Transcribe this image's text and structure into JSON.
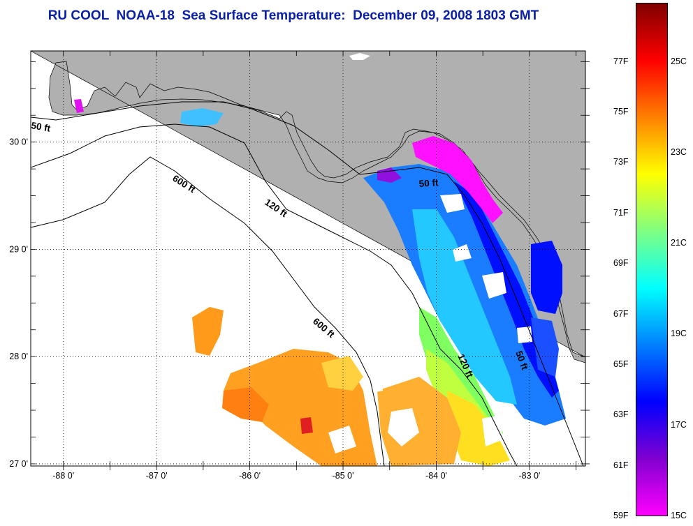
{
  "title": "RU COOL  NOAA-18  Sea Surface Temperature:  December 09, 2008 1803 GMT",
  "map": {
    "longitude_ticks": [
      {
        "label": "-88 0'",
        "value": -88
      },
      {
        "label": "-87 0'",
        "value": -87
      },
      {
        "label": "-86 0'",
        "value": -86
      },
      {
        "label": "-85 0'",
        "value": -85
      },
      {
        "label": "-84 0'",
        "value": -84
      },
      {
        "label": "-83 0'",
        "value": -83
      }
    ],
    "latitude_ticks": [
      {
        "label": "30 0'",
        "value": 30
      },
      {
        "label": "29 0'",
        "value": 29
      },
      {
        "label": "28 0'",
        "value": 28
      },
      {
        "label": "27 0'",
        "value": 27
      }
    ],
    "lon_range": [
      -88.35,
      -82.4
    ],
    "lat_range": [
      26.98,
      30.85
    ],
    "contour_labels": {
      "c50_west": "50 ft",
      "c600_north": "600 ft",
      "c120": "120 ft",
      "c50_east": "50 ft",
      "c600_south": "600 ft",
      "c120_south": "120 ft",
      "c50_south": "50 ft"
    },
    "colors": {
      "land": "#b0b0b0",
      "water_no_data": "#ffffff",
      "contour_line": "#000000"
    }
  },
  "colorbar": {
    "fahrenheit_labels": [
      "77F",
      "75F",
      "73F",
      "71F",
      "69F",
      "67F",
      "65F",
      "63F",
      "61F",
      "59F"
    ],
    "celsius_labels": [
      "25C",
      "23C",
      "21C",
      "19C",
      "17C",
      "15C"
    ],
    "range_celsius": [
      15,
      26.3
    ],
    "colormap": [
      "#ff00ff",
      "#8000d0",
      "#0000ff",
      "#0080ff",
      "#00ffff",
      "#80ff80",
      "#ffff00",
      "#ff8000",
      "#ff0000",
      "#800000"
    ]
  }
}
